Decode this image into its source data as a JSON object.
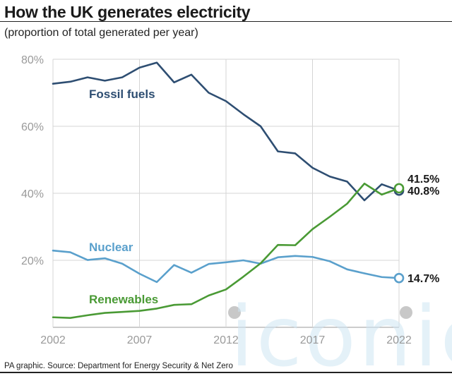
{
  "title": "How the UK generates electricity",
  "subtitle": "(proportion of total generated per year)",
  "source": "PA graphic. Source: Department for Energy Security & Net Zero",
  "watermark": "iconic",
  "chart_data": {
    "type": "line",
    "x": [
      2002,
      2003,
      2004,
      2005,
      2006,
      2007,
      2008,
      2009,
      2010,
      2011,
      2012,
      2013,
      2014,
      2015,
      2016,
      2017,
      2018,
      2019,
      2020,
      2021,
      2022
    ],
    "xticks": [
      "2002",
      "2007",
      "2012",
      "2017",
      "2022"
    ],
    "yticks": [
      "20%",
      "40%",
      "60%",
      "80%"
    ],
    "ylim": [
      0,
      80
    ],
    "xlim": [
      2002,
      2022
    ],
    "grid": true,
    "series": [
      {
        "name": "Fossil fuels",
        "color": "#2e4e72",
        "values": [
          72.7,
          73.3,
          74.6,
          73.6,
          74.6,
          77.5,
          79.0,
          73.1,
          75.4,
          70.0,
          67.5,
          63.6,
          60.0,
          52.5,
          51.9,
          47.6,
          45.0,
          43.5,
          37.9,
          42.7,
          40.8
        ],
        "end_label": "40.8%"
      },
      {
        "name": "Nuclear",
        "color": "#5aa0cc",
        "values": [
          22.9,
          22.4,
          20.1,
          20.6,
          19.0,
          16.0,
          13.5,
          18.6,
          16.3,
          18.9,
          19.4,
          20.0,
          19.0,
          20.9,
          21.3,
          21.0,
          19.7,
          17.3,
          16.1,
          15.0,
          14.7
        ],
        "end_label": "14.7%"
      },
      {
        "name": "Renewables",
        "color": "#4a9a35",
        "values": [
          3.0,
          2.8,
          3.6,
          4.3,
          4.6,
          4.9,
          5.6,
          6.7,
          6.9,
          9.5,
          11.3,
          15.1,
          19.1,
          24.6,
          24.5,
          29.3,
          33.0,
          36.9,
          42.9,
          39.6,
          41.5
        ],
        "end_label": "41.5%"
      }
    ]
  }
}
